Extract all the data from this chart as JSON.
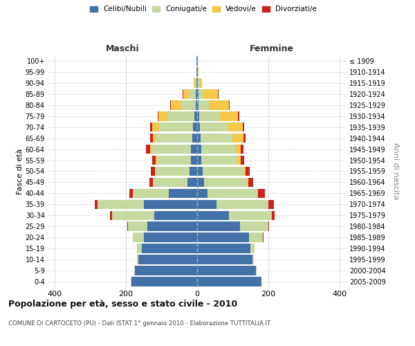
{
  "age_groups": [
    "0-4",
    "5-9",
    "10-14",
    "15-19",
    "20-24",
    "25-29",
    "30-34",
    "35-39",
    "40-44",
    "45-49",
    "50-54",
    "55-59",
    "60-64",
    "65-69",
    "70-74",
    "75-79",
    "80-84",
    "85-89",
    "90-94",
    "95-99",
    "100+"
  ],
  "birth_years": [
    "2005-2009",
    "2000-2004",
    "1995-1999",
    "1990-1994",
    "1985-1989",
    "1980-1984",
    "1975-1979",
    "1970-1974",
    "1965-1969",
    "1960-1964",
    "1955-1959",
    "1950-1954",
    "1945-1949",
    "1940-1944",
    "1935-1939",
    "1930-1934",
    "1925-1929",
    "1920-1924",
    "1915-1919",
    "1910-1914",
    "≤ 1909"
  ],
  "males": {
    "celibi": [
      185,
      175,
      165,
      155,
      150,
      140,
      120,
      150,
      80,
      28,
      22,
      18,
      18,
      14,
      12,
      8,
      4,
      3,
      2,
      1,
      1
    ],
    "coniugati": [
      1,
      2,
      5,
      15,
      30,
      55,
      120,
      130,
      100,
      95,
      95,
      95,
      110,
      100,
      95,
      75,
      40,
      20,
      4,
      1,
      0
    ],
    "vedovi": [
      0,
      0,
      0,
      0,
      0,
      0,
      0,
      0,
      1,
      1,
      2,
      3,
      5,
      10,
      20,
      25,
      30,
      15,
      3,
      0,
      0
    ],
    "divorziati": [
      0,
      0,
      0,
      0,
      1,
      2,
      5,
      8,
      10,
      10,
      12,
      10,
      10,
      8,
      5,
      3,
      2,
      2,
      0,
      0,
      0
    ]
  },
  "females": {
    "nubili": [
      180,
      165,
      155,
      150,
      145,
      120,
      90,
      55,
      30,
      20,
      16,
      12,
      12,
      10,
      8,
      5,
      4,
      3,
      2,
      1,
      1
    ],
    "coniugate": [
      1,
      2,
      4,
      12,
      40,
      80,
      120,
      145,
      140,
      120,
      115,
      100,
      95,
      90,
      80,
      60,
      30,
      15,
      4,
      1,
      0
    ],
    "vedove": [
      0,
      0,
      0,
      0,
      0,
      0,
      0,
      1,
      2,
      3,
      5,
      10,
      15,
      30,
      40,
      50,
      55,
      40,
      8,
      1,
      0
    ],
    "divorziate": [
      0,
      0,
      0,
      0,
      1,
      3,
      8,
      15,
      18,
      15,
      12,
      10,
      8,
      6,
      5,
      4,
      3,
      2,
      0,
      0,
      0
    ]
  },
  "colors": {
    "celibi": "#4472a8",
    "coniugati": "#c5d9a0",
    "vedovi": "#f5c84a",
    "divorziati": "#cc2222"
  },
  "legend_labels": [
    "Celibi/Nubili",
    "Coniugati/e",
    "Vedovi/e",
    "Divorziati/e"
  ],
  "xlim": 420,
  "title": "Popolazione per età, sesso e stato civile - 2010",
  "subtitle": "COMUNE DI CARTOCETO (PU) - Dati ISTAT 1° gennaio 2010 - Elaborazione TUTTITALIA.IT",
  "ylabel_left": "Fasce di età",
  "ylabel_right": "Anni di nascita",
  "xlabel_maschi": "Maschi",
  "xlabel_femmine": "Femmine",
  "background_color": "#ffffff",
  "grid_color": "#d0d0d0"
}
